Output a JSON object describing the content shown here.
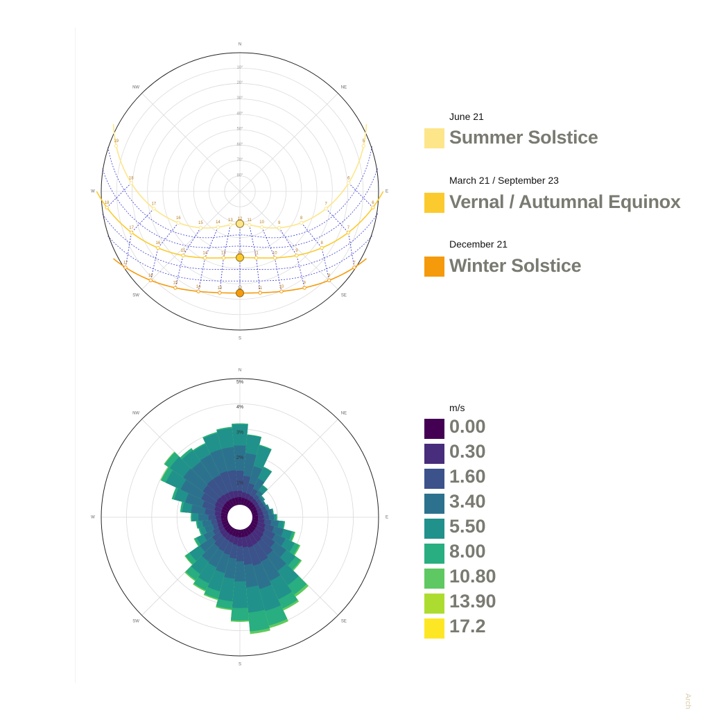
{
  "chart_data": [
    {
      "type": "sun_path",
      "compass": {
        "N": "N",
        "NE": "NE",
        "E": "E",
        "SE": "SE",
        "S": "S",
        "SW": "SW",
        "W": "W",
        "NW": "NW"
      },
      "altitude_labels": [
        "10°",
        "20°",
        "30°",
        "40°",
        "50°",
        "60°",
        "70°",
        "80°"
      ],
      "curves": [
        {
          "name": "Summer Solstice",
          "date": "June 21",
          "color": "#fde68a",
          "hours": [
            "5",
            "6",
            "7",
            "8",
            "9",
            "10",
            "11",
            "12",
            "13",
            "14",
            "15",
            "16",
            "17",
            "18",
            "19"
          ],
          "noon_altitude": 72,
          "sunrise_azimuth": 62
        },
        {
          "name": "Vernal / Autumnal Equinox",
          "date": "March 21 / September 23",
          "color": "#fbca2e",
          "hours": [
            "6",
            "7",
            "8",
            "9",
            "10",
            "11",
            "12",
            "13",
            "14",
            "15",
            "16",
            "17",
            "18"
          ],
          "noon_altitude": 50,
          "sunrise_azimuth": 90
        },
        {
          "name": "Winter Solstice",
          "date": "December 21",
          "color": "#f59a0b",
          "hours": [
            "7",
            "8",
            "9",
            "10",
            "11",
            "12",
            "13",
            "14",
            "15",
            "16",
            "17"
          ],
          "noon_altitude": 27,
          "sunrise_azimuth": 118
        }
      ]
    },
    {
      "type": "wind_rose",
      "compass": {
        "N": "N",
        "NE": "NE",
        "E": "E",
        "SE": "SE",
        "S": "S",
        "SW": "SW",
        "W": "W",
        "NW": "NW"
      },
      "radial_ticks": [
        "1%",
        "2%",
        "3%",
        "4%",
        "5%"
      ],
      "radial_max": 5,
      "unit": "m/s",
      "speed_bins": [
        "0.00",
        "0.30",
        "1.60",
        "3.40",
        "5.50",
        "8.00",
        "10.80",
        "13.90",
        "17.2"
      ],
      "bin_colors": [
        "#440154",
        "#472d7b",
        "#3b528b",
        "#2c728e",
        "#21918c",
        "#28ae80",
        "#5ec962",
        "#addc30",
        "#fde725"
      ],
      "directions_deg": [
        0,
        10,
        20,
        30,
        40,
        50,
        60,
        70,
        80,
        90,
        100,
        110,
        120,
        130,
        140,
        150,
        160,
        170,
        180,
        190,
        200,
        210,
        220,
        230,
        240,
        250,
        260,
        270,
        280,
        290,
        300,
        310,
        320,
        330,
        340,
        350
      ],
      "cumulative_percent": [
        [
          0.3,
          0.55,
          1.35,
          2.35,
          3.18,
          3.22,
          3.22,
          3.22,
          3.22
        ],
        [
          0.28,
          0.5,
          1.15,
          2.05,
          2.78,
          2.8,
          2.8,
          2.8,
          2.8
        ],
        [
          0.27,
          0.48,
          0.9,
          1.6,
          2.45,
          2.48,
          2.48,
          2.48,
          2.48
        ],
        [
          0.26,
          0.45,
          0.75,
          1.2,
          1.7,
          1.72,
          1.72,
          1.72,
          1.72
        ],
        [
          0.25,
          0.42,
          0.6,
          0.8,
          1.05,
          1.07,
          1.07,
          1.07,
          1.07
        ],
        [
          0.24,
          0.4,
          0.55,
          0.65,
          0.72,
          0.72,
          0.72,
          0.72,
          0.72
        ],
        [
          0.23,
          0.38,
          0.55,
          0.62,
          0.65,
          0.65,
          0.65,
          0.65,
          0.65
        ],
        [
          0.22,
          0.4,
          0.58,
          0.68,
          0.72,
          0.72,
          0.72,
          0.72,
          0.72
        ],
        [
          0.22,
          0.42,
          0.62,
          0.78,
          0.85,
          0.85,
          0.85,
          0.85,
          0.85
        ],
        [
          0.22,
          0.45,
          0.65,
          0.85,
          0.95,
          0.98,
          0.98,
          0.98,
          0.98
        ],
        [
          0.23,
          0.48,
          0.75,
          1.05,
          1.25,
          1.3,
          1.3,
          1.3,
          1.3
        ],
        [
          0.24,
          0.55,
          0.9,
          1.3,
          1.65,
          1.75,
          1.78,
          1.78,
          1.78
        ],
        [
          0.25,
          0.6,
          1.05,
          1.5,
          1.9,
          2.1,
          2.15,
          2.15,
          2.15
        ],
        [
          0.26,
          0.65,
          1.2,
          1.75,
          2.2,
          2.45,
          2.5,
          2.5,
          2.5
        ],
        [
          0.27,
          0.7,
          1.35,
          2.1,
          2.8,
          3.25,
          3.35,
          3.35,
          3.35
        ],
        [
          0.28,
          0.72,
          1.45,
          2.3,
          3.1,
          3.5,
          3.58,
          3.58,
          3.58
        ],
        [
          0.3,
          0.75,
          1.5,
          2.45,
          3.35,
          3.95,
          4.05,
          4.05,
          4.05
        ],
        [
          0.3,
          0.7,
          1.4,
          2.3,
          3.3,
          4.05,
          4.15,
          4.15,
          4.15
        ],
        [
          0.3,
          0.65,
          1.25,
          2.05,
          3.1,
          3.6,
          3.65,
          3.65,
          3.65
        ],
        [
          0.29,
          0.6,
          1.15,
          1.95,
          2.85,
          3.15,
          3.2,
          3.2,
          3.2
        ],
        [
          0.28,
          0.55,
          1.05,
          1.8,
          2.55,
          2.85,
          2.9,
          2.9,
          2.9
        ],
        [
          0.28,
          0.52,
          1.0,
          1.7,
          2.4,
          2.7,
          2.75,
          2.75,
          2.75
        ],
        [
          0.27,
          0.5,
          0.95,
          1.65,
          2.25,
          2.55,
          2.6,
          2.6,
          2.6
        ],
        [
          0.26,
          0.48,
          0.85,
          1.45,
          1.95,
          2.15,
          2.18,
          2.18,
          2.18
        ],
        [
          0.25,
          0.45,
          0.7,
          1.1,
          1.4,
          1.5,
          1.52,
          1.52,
          1.52
        ],
        [
          0.24,
          0.42,
          0.62,
          0.95,
          1.15,
          1.2,
          1.2,
          1.2,
          1.2
        ],
        [
          0.24,
          0.42,
          0.65,
          1.0,
          1.2,
          1.25,
          1.25,
          1.25,
          1.25
        ],
        [
          0.25,
          0.45,
          0.75,
          1.15,
          1.4,
          1.45,
          1.45,
          1.45,
          1.45
        ],
        [
          0.26,
          0.5,
          0.9,
          1.45,
          1.8,
          1.88,
          1.88,
          1.88,
          1.88
        ],
        [
          0.27,
          0.55,
          1.05,
          1.75,
          2.2,
          2.3,
          2.3,
          2.3,
          2.3
        ],
        [
          0.28,
          0.6,
          1.2,
          2.1,
          2.75,
          2.95,
          2.98,
          2.98,
          2.98
        ],
        [
          0.29,
          0.62,
          1.3,
          2.25,
          2.9,
          3.15,
          3.18,
          3.18,
          3.18
        ],
        [
          0.3,
          0.6,
          1.35,
          2.2,
          2.75,
          2.85,
          2.85,
          2.85,
          2.85
        ],
        [
          0.3,
          0.58,
          1.35,
          2.25,
          2.7,
          2.75,
          2.75,
          2.75,
          2.75
        ],
        [
          0.3,
          0.58,
          1.4,
          2.3,
          2.95,
          3.0,
          3.0,
          3.0,
          3.0
        ],
        [
          0.3,
          0.56,
          1.38,
          2.3,
          3.05,
          3.1,
          3.1,
          3.1,
          3.1
        ]
      ]
    }
  ],
  "legend_sun": [
    {
      "date": "June 21",
      "label": "Summer Solstice",
      "color": "#fde68a"
    },
    {
      "date": "March 21 / September 23",
      "label": "Vernal / Autumnal Equinox",
      "color": "#fbca2e"
    },
    {
      "date": "December 21",
      "label": "Winter Solstice",
      "color": "#f59a0b"
    }
  ],
  "legend_wind": {
    "unit": "m/s",
    "items": [
      {
        "label": "0.00",
        "color": "#440154"
      },
      {
        "label": "0.30",
        "color": "#472d7b"
      },
      {
        "label": "1.60",
        "color": "#3b528b"
      },
      {
        "label": "3.40",
        "color": "#2c728e"
      },
      {
        "label": "5.50",
        "color": "#21918c"
      },
      {
        "label": "8.00",
        "color": "#28ae80"
      },
      {
        "label": "10.80",
        "color": "#5ec962"
      },
      {
        "label": "13.90",
        "color": "#addc30"
      },
      {
        "label": "17.2",
        "color": "#fde725"
      }
    ]
  },
  "watermark": "Arch"
}
